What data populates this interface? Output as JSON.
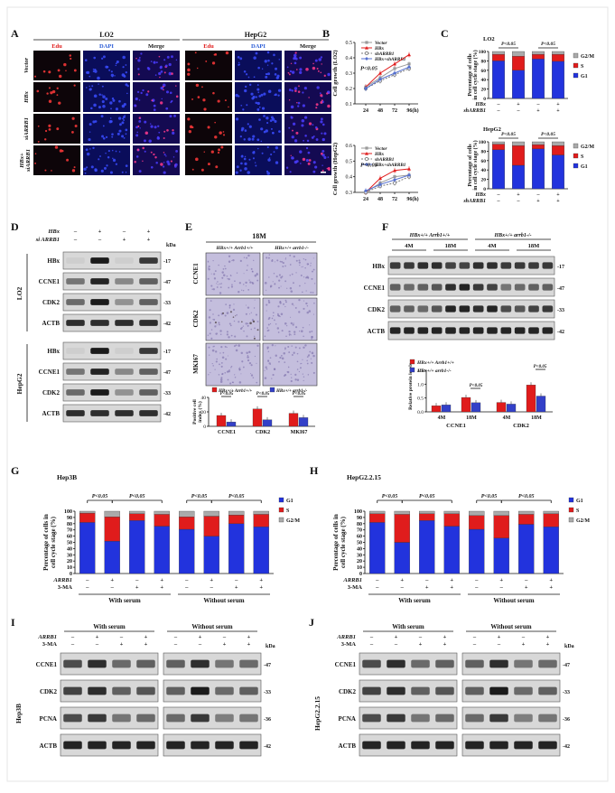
{
  "panels": {
    "A": {
      "letter": "A",
      "groups": [
        "LO2",
        "HepG2"
      ],
      "columns": [
        "Edu",
        "DAPI",
        "Merge",
        "Edu",
        "DAPI",
        "Merge"
      ],
      "rows": [
        "Vector",
        "HBx",
        "siARRB1",
        "HBx+ siARRB1"
      ]
    },
    "B": {
      "letter": "B",
      "legend": [
        "Vector",
        "HBx",
        "shARRB1",
        "HBx+shARRB1"
      ],
      "charts": [
        {
          "ylabel": "Cell growth (LO2)",
          "yticks": [
            "0.1",
            "0.2",
            "0.3",
            "0.4",
            "0.5"
          ],
          "xticks": [
            "24",
            "48",
            "72",
            "96(h)"
          ],
          "pval": "P<0.05"
        },
        {
          "ylabel": "Cell growth (HepG2)",
          "yticks": [
            "0.3",
            "0.4",
            "0.5",
            "0.6"
          ],
          "xticks": [
            "24",
            "48",
            "72",
            "96(h)"
          ],
          "pval": "P<0.05"
        }
      ]
    },
    "C": {
      "letter": "C",
      "legend": [
        "G2/M",
        "S",
        "G1"
      ],
      "ylabel": "Percentage of cells in cell cycle stage (%)",
      "charts": [
        {
          "title": "LO2",
          "yticks": [
            "0",
            "20",
            "40",
            "60",
            "80",
            "100"
          ],
          "pvals": [
            "P<0.05",
            "P<0.05"
          ],
          "rowlabels": [
            "HBx",
            "shARRB1"
          ]
        },
        {
          "title": "HepG2",
          "yticks": [
            "0",
            "20",
            "40",
            "60",
            "80",
            "100"
          ],
          "pvals": [
            "P<0.05",
            "P<0.05"
          ],
          "rowlabels": [
            "HBx",
            "shARRB1"
          ]
        }
      ]
    },
    "D": {
      "letter": "D",
      "conditions": [
        "HBx",
        "si ARRB1"
      ],
      "signs": [
        [
          "-",
          "+",
          "-",
          "+"
        ],
        [
          "-",
          "-",
          "+",
          "+"
        ]
      ],
      "kda": "kDa",
      "groups": [
        {
          "name": "LO2",
          "bands": [
            {
              "name": "HBx",
              "kda": "17"
            },
            {
              "name": "CCNE1",
              "kda": "47"
            },
            {
              "name": "CDK2",
              "kda": "33"
            },
            {
              "name": "ACTB",
              "kda": "42"
            }
          ]
        },
        {
          "name": "HepG2",
          "bands": [
            {
              "name": "HBx",
              "kda": "17"
            },
            {
              "name": "CCNE1",
              "kda": "47"
            },
            {
              "name": "CDK2",
              "kda": "33"
            },
            {
              "name": "ACTB",
              "kda": "42"
            }
          ]
        }
      ]
    },
    "E": {
      "letter": "E",
      "title": "18M",
      "cols": [
        "HBx+/+ Arrb1+/+",
        "HBx+/+ arrb1-/-"
      ],
      "rows": [
        "CCNE1",
        "CDK2",
        "MKI67"
      ],
      "legend": [
        "HBx+/+ Arrb1+/+",
        "HBx+/+ arrb1-/-"
      ],
      "ylabel": "Positive cell index (%)",
      "pvals": [
        "P<0.05",
        "P<0.05",
        "P<0.05"
      ]
    },
    "F": {
      "letter": "F",
      "groups": [
        "HBx+/+ Arrb1+/+",
        "HBx+/+ arrb1-/-"
      ],
      "ages": [
        "4M",
        "18M",
        "4M",
        "18M"
      ],
      "bands": [
        {
          "name": "HBx",
          "kda": "17"
        },
        {
          "name": "CCNE1",
          "kda": "47"
        },
        {
          "name": "CDK2",
          "kda": "33"
        },
        {
          "name": "ACTB",
          "kda": "42"
        }
      ],
      "legend": [
        "HBx+/+ Arrb1+/+",
        "HBx+/+ arrb1-/-"
      ],
      "ylabel": "Relative protein levels",
      "xgroups": [
        "CCNE1",
        "CDK2"
      ],
      "xticks": [
        "4M",
        "18M",
        "4M",
        "18M"
      ],
      "pvals": [
        "P<0.05",
        "P<0.05"
      ]
    },
    "G": {
      "letter": "G",
      "title": "Hep3B",
      "ylabel": "Percentage of cells in cell cycle stage (%)",
      "yticks": [
        "0",
        "10",
        "20",
        "30",
        "40",
        "50",
        "60",
        "70",
        "80",
        "90",
        "100"
      ],
      "legend": [
        "G1",
        "S",
        "G2/M"
      ],
      "pvals": [
        "P<0.05",
        "P<0.05",
        "P<0.05",
        "P<0.05"
      ],
      "rowlabels": [
        "ARRB1",
        "3-MA"
      ],
      "signs": [
        [
          "-",
          "+",
          "-",
          "+",
          "-",
          "+",
          "-",
          "+"
        ],
        [
          "-",
          "-",
          "+",
          "+",
          "-",
          "-",
          "+",
          "+"
        ]
      ],
      "groups": [
        "With serum",
        "Without serum"
      ]
    },
    "H": {
      "letter": "H",
      "title": "HepG2.2.15",
      "ylabel": "Percentage of cells in cell cycle stage (%)",
      "yticks": [
        "0",
        "10",
        "20",
        "30",
        "40",
        "50",
        "60",
        "70",
        "80",
        "90",
        "100"
      ],
      "legend": [
        "G1",
        "S",
        "G2/M"
      ],
      "pvals": [
        "P<0.05",
        "P<0.05",
        "P<0.05",
        "P<0.05"
      ],
      "rowlabels": [
        "ARRB1",
        "3-MA"
      ],
      "signs": [
        [
          "-",
          "+",
          "-",
          "+",
          "-",
          "+",
          "-",
          "+"
        ],
        [
          "-",
          "-",
          "+",
          "+",
          "-",
          "-",
          "+",
          "+"
        ]
      ],
      "groups": [
        "With serum",
        "Without serum"
      ]
    },
    "I": {
      "letter": "I",
      "cell": "Hep3B",
      "groups": [
        "With serum",
        "Without serum"
      ],
      "rowlabels": [
        "ARRB1",
        "3-MA"
      ],
      "signs": [
        [
          "-",
          "+",
          "-",
          "+"
        ],
        [
          "-",
          "-",
          "+",
          "+"
        ]
      ],
      "kda": "kDa",
      "bands": [
        {
          "name": "CCNE1",
          "kda": "47"
        },
        {
          "name": "CDK2",
          "kda": "33"
        },
        {
          "name": "PCNA",
          "kda": "36"
        },
        {
          "name": "ACTB",
          "kda": "42"
        }
      ]
    },
    "J": {
      "letter": "J",
      "cell": "HepG2.2.15",
      "groups": [
        "With serum",
        "Without serum"
      ],
      "rowlabels": [
        "ARRB1",
        "3-MA"
      ],
      "signs": [
        [
          "-",
          "+",
          "-",
          "+"
        ],
        [
          "-",
          "-",
          "+",
          "+"
        ]
      ],
      "kda": "kDa",
      "bands": [
        {
          "name": "CCNE1",
          "kda": "47"
        },
        {
          "name": "CDK2",
          "kda": "33"
        },
        {
          "name": "PCNA",
          "kda": "36"
        },
        {
          "name": "ACTB",
          "kda": "42"
        }
      ]
    }
  },
  "chart_data": [
    {
      "panel": "B-top",
      "type": "line",
      "x": [
        24,
        48,
        72,
        96
      ],
      "ylim": [
        0.1,
        0.5
      ],
      "series": [
        {
          "name": "Vector",
          "values": [
            0.21,
            0.27,
            0.33,
            0.36
          ]
        },
        {
          "name": "HBx",
          "values": [
            0.21,
            0.3,
            0.36,
            0.42
          ]
        },
        {
          "name": "shARRB1",
          "values": [
            0.2,
            0.25,
            0.29,
            0.33
          ]
        },
        {
          "name": "HBx+shARRB1",
          "values": [
            0.2,
            0.26,
            0.3,
            0.34
          ]
        }
      ]
    },
    {
      "panel": "B-bottom",
      "type": "line",
      "x": [
        24,
        48,
        72,
        96
      ],
      "ylim": [
        0.3,
        0.6
      ],
      "series": [
        {
          "name": "Vector",
          "values": [
            0.3,
            0.36,
            0.4,
            0.41
          ]
        },
        {
          "name": "HBx",
          "values": [
            0.3,
            0.39,
            0.44,
            0.45
          ]
        },
        {
          "name": "shARRB1",
          "values": [
            0.3,
            0.34,
            0.36,
            0.4
          ]
        },
        {
          "name": "HBx+shARRB1",
          "values": [
            0.31,
            0.35,
            0.38,
            0.41
          ]
        }
      ]
    },
    {
      "panel": "C-LO2",
      "type": "bar",
      "stacked": true,
      "ylim": [
        0,
        100
      ],
      "categories": [
        "1",
        "2",
        "3",
        "4"
      ],
      "series": [
        {
          "name": "G1",
          "values": [
            80,
            60,
            84,
            79
          ]
        },
        {
          "name": "S",
          "values": [
            14,
            30,
            10,
            15
          ]
        },
        {
          "name": "G2/M",
          "values": [
            6,
            10,
            6,
            6
          ]
        }
      ]
    },
    {
      "panel": "C-HepG2",
      "type": "bar",
      "stacked": true,
      "ylim": [
        0,
        100
      ],
      "categories": [
        "1",
        "2",
        "3",
        "4"
      ],
      "series": [
        {
          "name": "G1",
          "values": [
            83,
            50,
            85,
            72
          ]
        },
        {
          "name": "S",
          "values": [
            12,
            42,
            9,
            20
          ]
        },
        {
          "name": "G2/M",
          "values": [
            5,
            8,
            6,
            8
          ]
        }
      ]
    },
    {
      "panel": "E",
      "type": "bar",
      "ylim": [
        0,
        40
      ],
      "categories": [
        "CCNE1",
        "CDK2",
        "MKI67"
      ],
      "series": [
        {
          "name": "HBx+/+ Arrb1+/+",
          "values": [
            15,
            24,
            18
          ]
        },
        {
          "name": "HBx+/+ arrb1-/-",
          "values": [
            6,
            9,
            12
          ]
        }
      ]
    },
    {
      "panel": "F",
      "type": "bar",
      "ylim": [
        0,
        1.5
      ],
      "categories": [
        "CCNE1 4M",
        "CCNE1 18M",
        "CDK2 4M",
        "CDK2 18M"
      ],
      "series": [
        {
          "name": "HBx+/+ Arrb1+/+",
          "values": [
            0.22,
            0.52,
            0.34,
            0.97
          ]
        },
        {
          "name": "HBx+/+ arrb1-/-",
          "values": [
            0.25,
            0.33,
            0.28,
            0.57
          ]
        }
      ]
    },
    {
      "panel": "G",
      "type": "bar",
      "stacked": true,
      "ylim": [
        0,
        100
      ],
      "categories": [
        "1",
        "2",
        "3",
        "4",
        "5",
        "6",
        "7",
        "8"
      ],
      "series": [
        {
          "name": "G1",
          "values": [
            82,
            52,
            85,
            76,
            71,
            60,
            80,
            75
          ]
        },
        {
          "name": "S",
          "values": [
            15,
            39,
            11,
            19,
            20,
            32,
            14,
            20
          ]
        },
        {
          "name": "G2/M",
          "values": [
            3,
            9,
            4,
            5,
            9,
            8,
            6,
            5
          ]
        }
      ]
    },
    {
      "panel": "H",
      "type": "bar",
      "stacked": true,
      "ylim": [
        0,
        100
      ],
      "categories": [
        "1",
        "2",
        "3",
        "4",
        "5",
        "6",
        "7",
        "8"
      ],
      "series": [
        {
          "name": "G1",
          "values": [
            82,
            50,
            85,
            76,
            71,
            57,
            79,
            75
          ]
        },
        {
          "name": "S",
          "values": [
            14,
            45,
            11,
            20,
            22,
            36,
            16,
            21
          ]
        },
        {
          "name": "G2/M",
          "values": [
            4,
            5,
            4,
            4,
            7,
            7,
            5,
            4
          ]
        }
      ]
    }
  ],
  "colors": {
    "g1": "#2233dd",
    "s": "#e01c1c",
    "g2m": "#aaaaaa",
    "blue_series": "#3340c8"
  }
}
